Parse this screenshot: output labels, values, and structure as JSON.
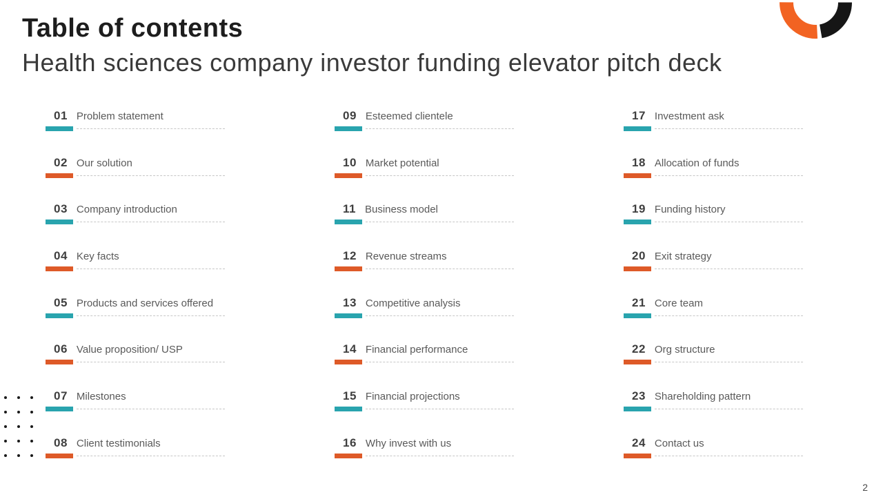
{
  "slide": {
    "title": "Table of contents",
    "subtitle": "Health sciences company investor funding elevator pitch deck",
    "page_number": "2"
  },
  "colors": {
    "accent_teal": "#29a4ae",
    "accent_orange": "#de5a28",
    "logo_orange": "#f26322",
    "logo_black": "#161616",
    "number_text": "#3f3f3f",
    "label_text": "#595959",
    "dashed_line": "#c6c6c6"
  },
  "logo": {
    "icon": "ring-logo-icon",
    "segments": [
      "orange-arc",
      "black-arc"
    ]
  },
  "decoration": {
    "dots_grid": {
      "rows": 5,
      "columns": 3
    }
  },
  "toc": {
    "columns": [
      {
        "items": [
          {
            "number": "01",
            "label": "Problem statement",
            "accent": "teal"
          },
          {
            "number": "02",
            "label": "Our solution",
            "accent": "orange"
          },
          {
            "number": "03",
            "label": "Company introduction",
            "accent": "teal"
          },
          {
            "number": "04",
            "label": "Key facts",
            "accent": "orange"
          },
          {
            "number": "05",
            "label": "Products and services offered",
            "accent": "teal"
          },
          {
            "number": "06",
            "label": "Value proposition/ USP",
            "accent": "orange"
          },
          {
            "number": "07",
            "label": "Milestones",
            "accent": "teal"
          },
          {
            "number": "08",
            "label": "Client testimonials",
            "accent": "orange"
          }
        ]
      },
      {
        "items": [
          {
            "number": "09",
            "label": "Esteemed clientele",
            "accent": "teal"
          },
          {
            "number": "10",
            "label": "Market potential",
            "accent": "orange"
          },
          {
            "number": "11",
            "label": "Business model",
            "accent": "teal"
          },
          {
            "number": "12",
            "label": "Revenue streams",
            "accent": "orange"
          },
          {
            "number": "13",
            "label": "Competitive analysis",
            "accent": "teal"
          },
          {
            "number": "14",
            "label": "Financial performance",
            "accent": "orange"
          },
          {
            "number": "15",
            "label": "Financial projections",
            "accent": "teal"
          },
          {
            "number": "16",
            "label": "Why invest with us",
            "accent": "orange"
          }
        ]
      },
      {
        "items": [
          {
            "number": "17",
            "label": "Investment ask",
            "accent": "teal"
          },
          {
            "number": "18",
            "label": "Allocation of funds",
            "accent": "orange"
          },
          {
            "number": "19",
            "label": "Funding history",
            "accent": "teal"
          },
          {
            "number": "20",
            "label": "Exit strategy",
            "accent": "orange"
          },
          {
            "number": "21",
            "label": "Core team",
            "accent": "teal"
          },
          {
            "number": "22",
            "label": "Org structure",
            "accent": "orange"
          },
          {
            "number": "23",
            "label": "Shareholding pattern",
            "accent": "teal"
          },
          {
            "number": "24",
            "label": "Contact us",
            "accent": "orange"
          }
        ]
      }
    ]
  }
}
